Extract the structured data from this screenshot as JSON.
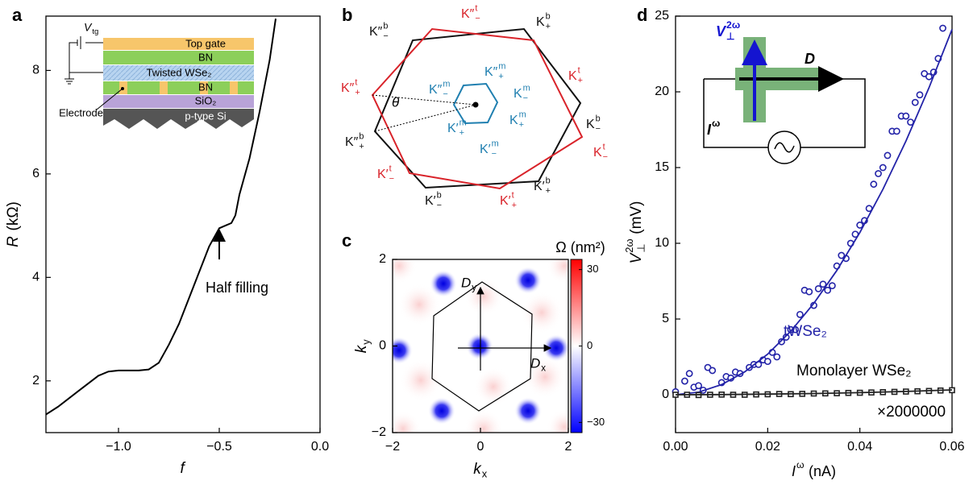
{
  "chart_data": [
    {
      "type": "line",
      "panel_label": "a",
      "xlabel": "f",
      "ylabel": {
        "main": "R",
        "unit": "(kΩ)"
      },
      "x": [
        -1.36,
        -1.3,
        -1.2,
        -1.1,
        -1.05,
        -1.0,
        -0.95,
        -0.9,
        -0.85,
        -0.8,
        -0.75,
        -0.7,
        -0.65,
        -0.6,
        -0.55,
        -0.5,
        -0.47,
        -0.44,
        -0.42,
        -0.4,
        -0.35,
        -0.3,
        -0.25,
        -0.22
      ],
      "values": [
        1.35,
        1.5,
        1.8,
        2.1,
        2.18,
        2.2,
        2.2,
        2.2,
        2.22,
        2.35,
        2.7,
        3.1,
        3.6,
        4.1,
        4.6,
        4.95,
        5.0,
        5.05,
        5.2,
        5.6,
        6.3,
        7.2,
        8.2,
        9.0
      ],
      "color": "#000000",
      "xlim": [
        -1.36,
        0
      ],
      "ylim": [
        1,
        9.05
      ],
      "xticks": [
        {
          "value": -1,
          "label": "−1.0"
        },
        {
          "value": -0.5,
          "label": "−0.5"
        },
        {
          "value": 0,
          "label": "0.0"
        }
      ],
      "yticks": [
        2,
        4,
        6,
        8
      ],
      "annotation": "Half filling",
      "inset": {
        "vtg": {
          "main": "V",
          "sub": "tg"
        },
        "top_gate": "Top gate",
        "bn_top": "BN",
        "twisted": "Twisted WSe₂",
        "bn_bottom": "BN",
        "sio2": "SiO₂",
        "si": "p-type Si",
        "electrode": "Electrode"
      }
    },
    {
      "type": "heatmap",
      "panel_label": "c",
      "xlabel": {
        "main": "k",
        "sub": "x"
      },
      "ylabel": {
        "main": "k",
        "sub": "y"
      },
      "xlim": [
        -2,
        2
      ],
      "ylim": [
        -2,
        2
      ],
      "xticks": [
        {
          "value": -2,
          "label": "−2"
        },
        0,
        2
      ],
      "yticks": [
        {
          "value": -2,
          "label": "−2"
        },
        0,
        2
      ],
      "colorbar": {
        "label": "Ω (nm²)",
        "lim": [
          -34,
          34
        ],
        "ticks": [
          30,
          0,
          {
            "value": -30,
            "label": "−30"
          }
        ]
      },
      "arrows": {
        "dx": {
          "main": "D",
          "sub": "x"
        },
        "dy": {
          "main": "D",
          "sub": "y"
        }
      }
    },
    {
      "type": "scatter",
      "panel_label": "d",
      "xlabel": {
        "main": "I",
        "sup": "ω",
        "unit": "(nA)"
      },
      "ylabel": {
        "main": "V",
        "sup": "2ω",
        "sub": "⊥",
        "unit": "(mV)"
      },
      "xlim": [
        0,
        0.06
      ],
      "ylim": [
        -2.5,
        25
      ],
      "xticks": [
        {
          "value": 0,
          "label": "0.00"
        },
        0.02,
        0.04,
        0.06
      ],
      "yticks": [
        0,
        5,
        10,
        15,
        20,
        25
      ],
      "series": [
        {
          "name": "tWSe₂",
          "color": "#2323a8",
          "marker": "circle",
          "x": [
            0,
            0.002,
            0.003,
            0.004,
            0.005,
            0.006,
            0.007,
            0.008,
            0.01,
            0.011,
            0.012,
            0.013,
            0.014,
            0.016,
            0.017,
            0.018,
            0.019,
            0.02,
            0.021,
            0.022,
            0.023,
            0.024,
            0.025,
            0.026,
            0.027,
            0.028,
            0.029,
            0.03,
            0.031,
            0.032,
            0.033,
            0.034,
            0.035,
            0.036,
            0.037,
            0.038,
            0.039,
            0.04,
            0.041,
            0.042,
            0.043,
            0.044,
            0.045,
            0.046,
            0.047,
            0.048,
            0.049,
            0.05,
            0.051,
            0.052,
            0.053,
            0.054,
            0.055,
            0.056,
            0.057,
            0.058
          ],
          "values": [
            0.2,
            0.9,
            1.4,
            0.5,
            0.6,
            0.3,
            1.8,
            1.6,
            0.8,
            1.2,
            1.1,
            1.5,
            1.4,
            1.8,
            2.0,
            2.0,
            2.3,
            2.2,
            2.8,
            2.5,
            3.5,
            3.8,
            4.3,
            4.3,
            5.3,
            6.9,
            6.8,
            5.9,
            7.0,
            7.3,
            6.9,
            7.2,
            8.5,
            9.2,
            9.0,
            10.0,
            10.6,
            11.2,
            11.5,
            12.3,
            13.9,
            14.6,
            15.0,
            15.8,
            17.4,
            17.4,
            18.4,
            18.4,
            18.0,
            19.3,
            19.8,
            21.2,
            21.0,
            21.3,
            22.2,
            24.2
          ]
        },
        {
          "color": "#2323a8",
          "style": "line",
          "x": [
            0,
            0.005,
            0.01,
            0.015,
            0.02,
            0.025,
            0.03,
            0.035,
            0.04,
            0.045,
            0.05,
            0.055,
            0.06
          ],
          "values": [
            0,
            0.17,
            0.67,
            1.51,
            2.68,
            4.19,
            6.03,
            8.21,
            10.72,
            13.57,
            16.75,
            20.27,
            24.12
          ]
        },
        {
          "name": "Monolayer WSe₂",
          "color": "#222222",
          "marker": "square",
          "x": [
            0,
            0.0025,
            0.005,
            0.0075,
            0.01,
            0.0125,
            0.015,
            0.0175,
            0.02,
            0.0225,
            0.025,
            0.0275,
            0.03,
            0.0325,
            0.035,
            0.0375,
            0.04,
            0.0425,
            0.045,
            0.0475,
            0.05,
            0.0525,
            0.055,
            0.0575,
            0.06
          ],
          "values": [
            0,
            0,
            -0.02,
            0,
            0.01,
            0,
            0,
            0.02,
            0.03,
            0.05,
            0.04,
            0.06,
            0.08,
            0.09,
            0.1,
            0.12,
            0.13,
            0.15,
            0.17,
            0.19,
            0.21,
            0.23,
            0.25,
            0.28,
            0.3
          ]
        },
        {
          "color": "#222222",
          "style": "line",
          "x": [
            0,
            0.01,
            0.02,
            0.03,
            0.04,
            0.05,
            0.06
          ],
          "values": [
            0,
            0.01,
            0.04,
            0.08,
            0.14,
            0.22,
            0.32
          ]
        }
      ],
      "scale_label": "×2000000",
      "inset": {
        "v": {
          "main": "V",
          "sub": "⊥",
          "sup": "2ω"
        },
        "d": "D",
        "i": {
          "main": "I",
          "sup": "ω"
        }
      }
    }
  ],
  "panel_b": {
    "panel_label": "b",
    "theta": "θ",
    "labels": [
      {
        "main": "K″",
        "sub": "−",
        "sup": "b",
        "color": "#111111"
      },
      {
        "main": "K",
        "sub": "+",
        "sup": "b",
        "color": "#111111"
      },
      {
        "main": "K",
        "sub": "−",
        "sup": "b",
        "color": "#111111"
      },
      {
        "main": "K′",
        "sub": "+",
        "sup": "b",
        "color": "#111111"
      },
      {
        "main": "K′",
        "sub": "−",
        "sup": "b",
        "color": "#111111"
      },
      {
        "main": "K″",
        "sub": "+",
        "sup": "b",
        "color": "#111111"
      },
      {
        "main": "K″",
        "sub": "−",
        "sup": "t",
        "color": "#d9232a"
      },
      {
        "main": "K",
        "sub": "+",
        "sup": "t",
        "color": "#d9232a"
      },
      {
        "main": "K",
        "sub": "−",
        "sup": "t",
        "color": "#d9232a"
      },
      {
        "main": "K′",
        "sub": "+",
        "sup": "t",
        "color": "#d9232a"
      },
      {
        "main": "K′",
        "sub": "−",
        "sup": "t",
        "color": "#d9232a"
      },
      {
        "main": "K″",
        "sub": "+",
        "sup": "t",
        "color": "#d9232a"
      },
      {
        "main": "K″",
        "sub": "−",
        "sup": "m",
        "color": "#1f7fb0"
      },
      {
        "main": "K″",
        "sub": "+",
        "sup": "m",
        "color": "#1f7fb0"
      },
      {
        "main": "K",
        "sub": "−",
        "sup": "m",
        "color": "#1f7fb0"
      },
      {
        "main": "K",
        "sub": "+",
        "sup": "m",
        "color": "#1f7fb0"
      },
      {
        "main": "K′",
        "sub": "−",
        "sup": "m",
        "color": "#1f7fb0"
      },
      {
        "main": "K′",
        "sub": "+",
        "sup": "m",
        "color": "#1f7fb0"
      }
    ]
  }
}
